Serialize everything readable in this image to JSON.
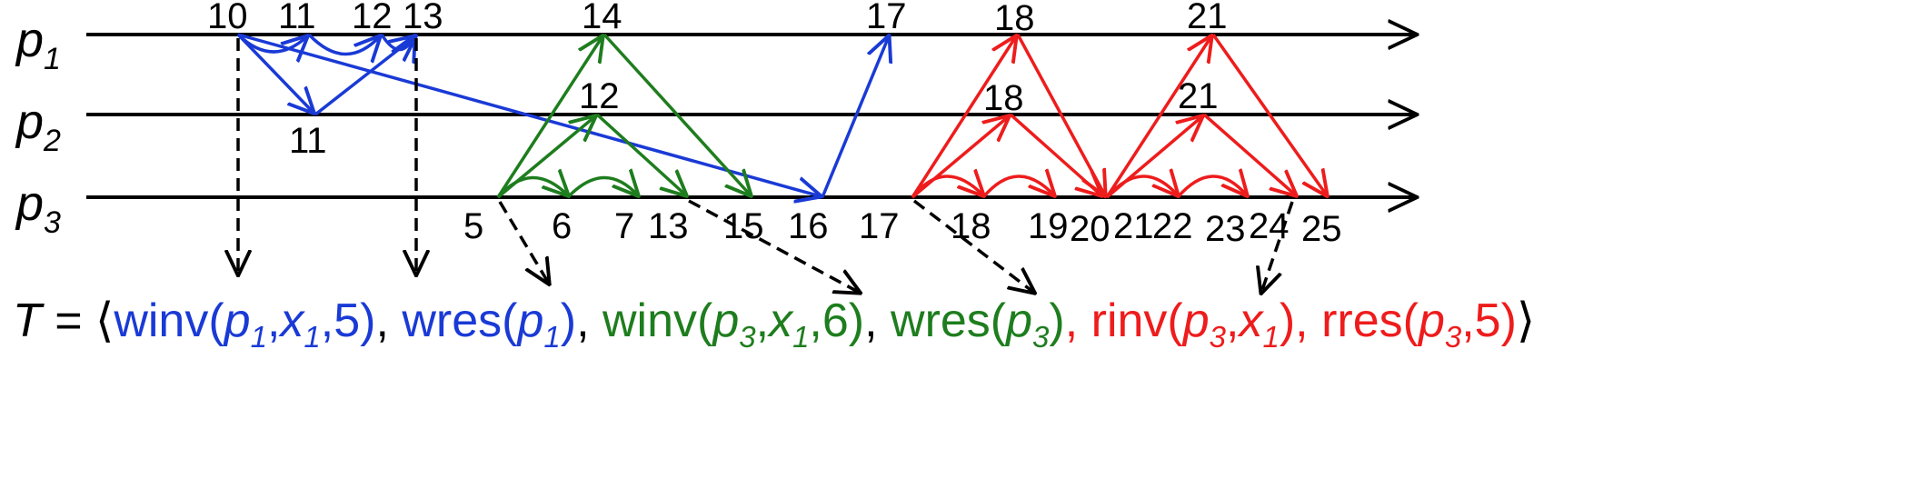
{
  "processes": [
    {
      "letter": "p",
      "sub": "1"
    },
    {
      "letter": "p",
      "sub": "2"
    },
    {
      "letter": "p",
      "sub": "3"
    }
  ],
  "event_labels": {
    "p1": [
      "10",
      "11",
      "12",
      "13",
      "14",
      "17",
      "18",
      "21"
    ],
    "p2": [
      "11",
      "12",
      "18",
      "21"
    ],
    "p3": [
      "5",
      "6",
      "7",
      "13",
      "15",
      "16",
      "17",
      "18",
      "19",
      "20",
      "21",
      "22",
      "23",
      "24",
      "25"
    ]
  },
  "trace": {
    "lhs": "T",
    "eq": " = ",
    "open": "⟨",
    "close": "⟩",
    "sep": ", ",
    "ops": {
      "winv1": {
        "name": "winv(",
        "p": "p",
        "ps": "1",
        "c1": ",",
        "x": "x",
        "xs": "1",
        "tail": ",5)"
      },
      "wres1": {
        "name": "wres(",
        "p": "p",
        "ps": "1",
        "tail": ")"
      },
      "winv3": {
        "name": "winv(",
        "p": "p",
        "ps": "3",
        "c1": ",",
        "x": "x",
        "xs": "1",
        "tail": ",6)"
      },
      "wres3": {
        "name": "wres(",
        "p": "p",
        "ps": "3",
        "tail": ")"
      },
      "rinv3": {
        "name": "rinv(",
        "p": "p",
        "ps": "3",
        "c1": ",",
        "x": "x",
        "xs": "1",
        "tail": ")"
      },
      "rres3": {
        "name": "rres(",
        "p": "p",
        "ps": "3",
        "tail": ",5)"
      }
    }
  },
  "colors": {
    "blue": "#1a3ad6",
    "green": "#1e7d1e",
    "red": "#ee1c1c",
    "black": "#000000"
  }
}
